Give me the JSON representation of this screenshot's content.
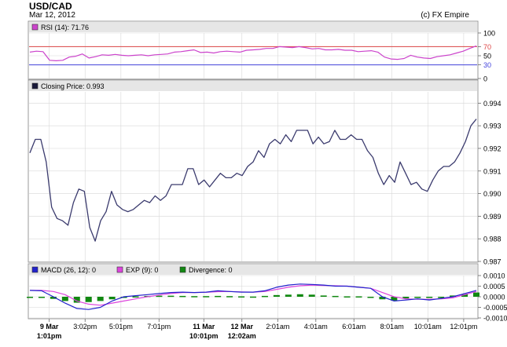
{
  "header": {
    "symbol": "USD/CAD",
    "date": "Mar 12, 2012",
    "credit": "(c) FX Empire"
  },
  "colors": {
    "price_line": "#3b3b6e",
    "rsi_line": "#cc44cc",
    "rsi_upper": "#dd4444",
    "rsi_lower": "#4444dd",
    "macd_line": "#2222cc",
    "exp_line": "#dd44dd",
    "divergence": "#118811",
    "panel_header": "#e6e6e6",
    "grid": "#d8d8d8",
    "frame": "#999999"
  },
  "chart_data": [
    {
      "type": "line",
      "panel": "rsi",
      "legend": "RSI (14): 71.76",
      "ylim": [
        0,
        100
      ],
      "yticks": [
        "100",
        "70",
        "50",
        "30",
        "0"
      ],
      "reference_lines": [
        70,
        30
      ],
      "series": [
        {
          "name": "RSI (14)",
          "values": [
            58,
            60,
            59,
            40,
            39,
            40,
            47,
            49,
            54,
            45,
            48,
            52,
            51,
            53,
            51,
            50,
            51,
            52,
            50,
            52,
            53,
            54,
            58,
            59,
            61,
            63,
            57,
            58,
            56,
            59,
            60,
            59,
            58,
            62,
            63,
            64,
            66,
            66,
            70,
            69,
            68,
            70,
            68,
            65,
            66,
            63,
            63,
            64,
            62,
            62,
            59,
            60,
            61,
            58,
            47,
            43,
            42,
            44,
            51,
            47,
            45,
            44,
            48,
            50,
            52,
            56,
            60,
            66,
            71.76
          ]
        }
      ]
    },
    {
      "type": "line",
      "panel": "price",
      "legend": "Closing Price: 0.993",
      "ylim": [
        0.987,
        0.9945
      ],
      "yticks": [
        "0.994",
        "0.993",
        "0.992",
        "0.991",
        "0.990",
        "0.989",
        "0.988",
        "0.987"
      ],
      "series": [
        {
          "name": "Closing Price",
          "values": [
            0.9918,
            0.9924,
            0.9924,
            0.9914,
            0.9894,
            0.9889,
            0.9888,
            0.9886,
            0.9896,
            0.9902,
            0.9901,
            0.9885,
            0.9879,
            0.9888,
            0.9892,
            0.9901,
            0.9895,
            0.9893,
            0.9892,
            0.9893,
            0.9895,
            0.9897,
            0.9896,
            0.9899,
            0.9897,
            0.9899,
            0.9904,
            0.9904,
            0.9904,
            0.9911,
            0.9911,
            0.9904,
            0.9906,
            0.9903,
            0.9906,
            0.9909,
            0.9907,
            0.9907,
            0.9909,
            0.9908,
            0.9912,
            0.9914,
            0.9919,
            0.9916,
            0.9922,
            0.9924,
            0.9922,
            0.9926,
            0.9923,
            0.9928,
            0.9928,
            0.9928,
            0.9922,
            0.9925,
            0.9922,
            0.9923,
            0.9928,
            0.9924,
            0.9924,
            0.9926,
            0.9924,
            0.9924,
            0.9919,
            0.9916,
            0.9909,
            0.9904,
            0.9908,
            0.9905,
            0.9914,
            0.9909,
            0.9904,
            0.9905,
            0.9902,
            0.9901,
            0.9906,
            0.991,
            0.9912,
            0.9912,
            0.9914,
            0.9918,
            0.9923,
            0.993,
            0.9933
          ]
        }
      ]
    },
    {
      "type": "line",
      "panel": "macd",
      "ylim": [
        -0.001,
        0.001
      ],
      "yticks": [
        "0.0010",
        "0.0005",
        "0.0000",
        "-0.0005",
        "-0.0010"
      ],
      "legend": [
        {
          "key": "macd",
          "label": "MACD (26, 12): 0"
        },
        {
          "key": "exp",
          "label": "EXP (9): 0"
        },
        {
          "key": "div",
          "label": "Divergence: 0"
        }
      ],
      "series": [
        {
          "name": "MACD (26, 12)",
          "values": [
            0.0003,
            0.00028,
            0.0,
            -0.0003,
            -0.00055,
            -0.0006,
            -0.0005,
            -0.0002,
            0.0,
            5e-05,
            0.0001,
            0.00015,
            0.0002,
            0.00022,
            0.0002,
            0.00022,
            0.00028,
            0.00025,
            0.00022,
            0.00022,
            0.00028,
            0.00045,
            0.00055,
            0.0006,
            0.00058,
            0.00055,
            0.0005,
            0.0005,
            0.00045,
            0.0004,
            0.0,
            -0.0002,
            -0.00015,
            -0.0001,
            -0.00015,
            -8e-05,
            0.0,
            0.00015,
            0.0003
          ]
        },
        {
          "name": "EXP (9)",
          "values": [
            0.0003,
            0.0003,
            0.00025,
            0.0001,
            -0.0002,
            -0.00035,
            -0.0004,
            -0.0003,
            -0.0002,
            -0.0001,
            0.0,
            8e-05,
            0.00015,
            0.0002,
            0.0002,
            0.00021,
            0.00024,
            0.00025,
            0.00023,
            0.00022,
            0.00025,
            0.00035,
            0.00045,
            0.00052,
            0.00055,
            0.00053,
            0.00052,
            0.0005,
            0.00045,
            0.0004,
            0.0002,
            0.0,
            -0.0001,
            -0.00012,
            -0.00012,
            -0.0001,
            -5e-05,
            0.0001,
            0.00025
          ]
        }
      ],
      "divergence": [
        0.0,
        0.0,
        -0.0001,
        -0.0002,
        -0.00028,
        -0.00025,
        -0.0002,
        -0.00012,
        -4e-05,
        2e-05,
        4e-05,
        5e-05,
        5e-05,
        4e-05,
        3e-05,
        3e-05,
        4e-05,
        3e-05,
        2e-05,
        1e-05,
        4e-05,
        8e-05,
        0.0001,
        0.00012,
        0.0001,
        6e-05,
        4e-05,
        2e-05,
        2e-05,
        0.0,
        -0.00012,
        -0.00018,
        -8e-05,
        -5e-05,
        -3e-05,
        0.0,
        6e-05,
        0.00012,
        0.0002
      ]
    }
  ],
  "x_axis": {
    "ticks": [
      {
        "pos": 0.045,
        "top": "9 Mar",
        "bottom": "1:01pm",
        "major": true
      },
      {
        "pos": 0.125,
        "top": "3:02pm",
        "bottom": "",
        "major": false
      },
      {
        "pos": 0.205,
        "top": "5:01pm",
        "bottom": "",
        "major": false
      },
      {
        "pos": 0.29,
        "top": "7:01pm",
        "bottom": "",
        "major": false
      },
      {
        "pos": 0.39,
        "top": "11 Mar",
        "bottom": "10:01pm",
        "major": true
      },
      {
        "pos": 0.475,
        "top": "12 Mar",
        "bottom": "12:02am",
        "major": true
      },
      {
        "pos": 0.555,
        "top": "2:01am",
        "bottom": "",
        "major": false
      },
      {
        "pos": 0.64,
        "top": "4:01am",
        "bottom": "",
        "major": false
      },
      {
        "pos": 0.725,
        "top": "6:01am",
        "bottom": "",
        "major": false
      },
      {
        "pos": 0.81,
        "top": "8:01am",
        "bottom": "",
        "major": false
      },
      {
        "pos": 0.89,
        "top": "10:01am",
        "bottom": "",
        "major": false
      },
      {
        "pos": 0.97,
        "top": "12:01pm",
        "bottom": "",
        "major": false
      }
    ]
  }
}
